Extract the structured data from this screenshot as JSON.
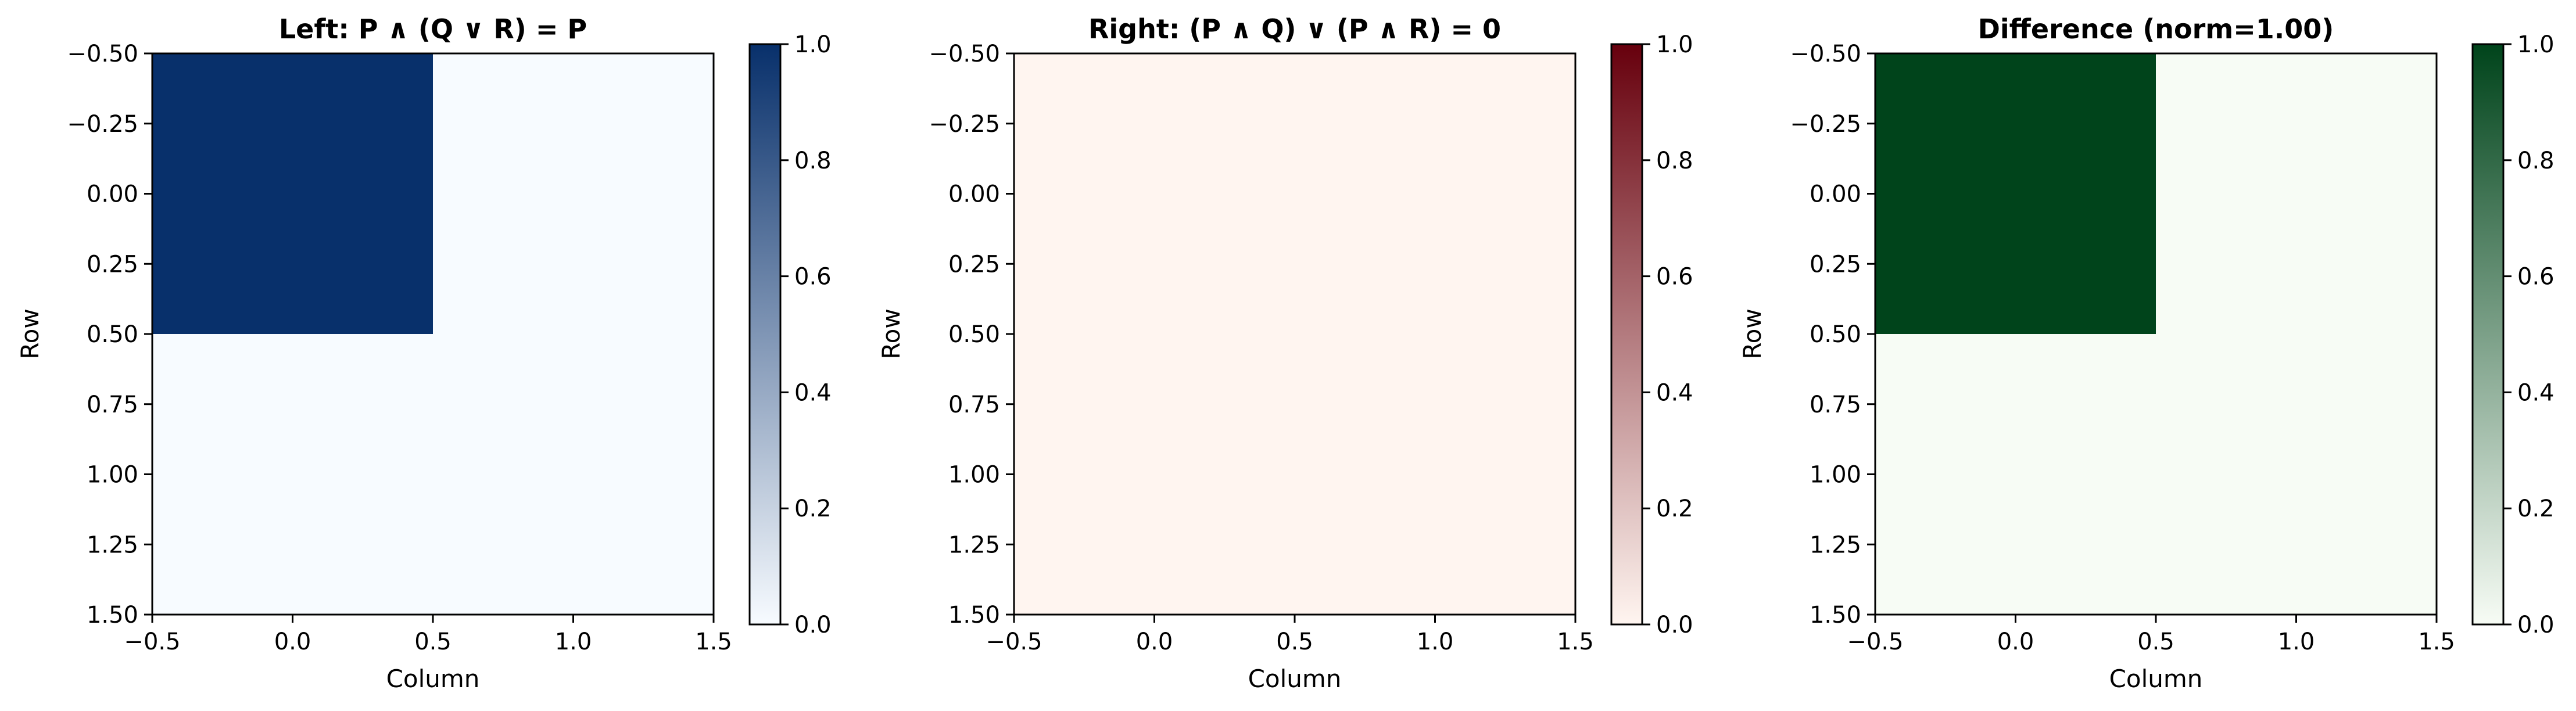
{
  "chart_data": [
    {
      "type": "heatmap",
      "title": "Left: P ∧ (Q ∨ R) = P",
      "xlabel": "Column",
      "ylabel": "Row",
      "matrix": [
        [
          1,
          0
        ],
        [
          0,
          0
        ]
      ],
      "xlim": [
        -0.5,
        1.5
      ],
      "ylim": [
        1.5,
        -0.5
      ],
      "xticks": [
        "−0.5",
        "0.0",
        "0.5",
        "1.0",
        "1.5"
      ],
      "yticks": [
        "−0.50",
        "−0.25",
        "0.00",
        "0.25",
        "0.50",
        "0.75",
        "1.00",
        "1.25",
        "1.50"
      ],
      "colormap": "Blues",
      "color_low": "#f7fbff",
      "color_high": "#08306b",
      "colorbar_ticks": [
        "0.0",
        "0.2",
        "0.4",
        "0.6",
        "0.8",
        "1.0"
      ],
      "colorbar_range": [
        0,
        1
      ]
    },
    {
      "type": "heatmap",
      "title": "Right: (P ∧ Q) ∨ (P ∧ R) = 0",
      "xlabel": "Column",
      "ylabel": "Row",
      "matrix": [
        [
          0,
          0
        ],
        [
          0,
          0
        ]
      ],
      "xlim": [
        -0.5,
        1.5
      ],
      "ylim": [
        1.5,
        -0.5
      ],
      "xticks": [
        "−0.5",
        "0.0",
        "0.5",
        "1.0",
        "1.5"
      ],
      "yticks": [
        "−0.50",
        "−0.25",
        "0.00",
        "0.25",
        "0.50",
        "0.75",
        "1.00",
        "1.25",
        "1.50"
      ],
      "colormap": "Reds",
      "color_low": "#fff5f0",
      "color_high": "#67000d",
      "colorbar_ticks": [
        "0.0",
        "0.2",
        "0.4",
        "0.6",
        "0.8",
        "1.0"
      ],
      "colorbar_range": [
        0,
        1
      ]
    },
    {
      "type": "heatmap",
      "title": "Difference (norm=1.00)",
      "xlabel": "Column",
      "ylabel": "Row",
      "matrix": [
        [
          1,
          0
        ],
        [
          0,
          0
        ]
      ],
      "xlim": [
        -0.5,
        1.5
      ],
      "ylim": [
        1.5,
        -0.5
      ],
      "xticks": [
        "−0.5",
        "0.0",
        "0.5",
        "1.0",
        "1.5"
      ],
      "yticks": [
        "−0.50",
        "−0.25",
        "0.00",
        "0.25",
        "0.50",
        "0.75",
        "1.00",
        "1.25",
        "1.50"
      ],
      "colormap": "Greens",
      "color_low": "#f7fcf5",
      "color_high": "#00441b",
      "colorbar_ticks": [
        "0.0",
        "0.2",
        "0.4",
        "0.6",
        "0.8",
        "1.0"
      ],
      "colorbar_range": [
        0,
        1
      ]
    }
  ]
}
